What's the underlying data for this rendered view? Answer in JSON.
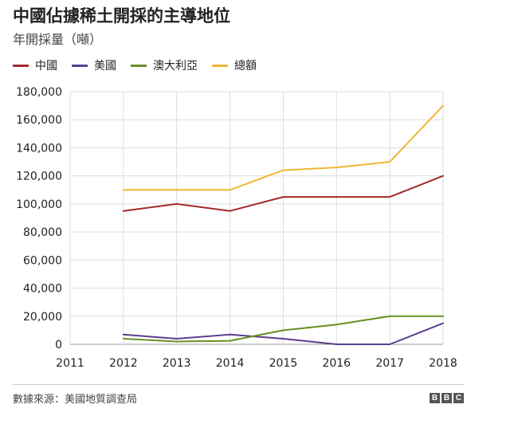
{
  "chart_data": {
    "type": "line",
    "title": "中國佔據稀土開採的主導地位",
    "subtitle": "年開採量（噸）",
    "x": [
      2011,
      2012,
      2013,
      2014,
      2015,
      2016,
      2017,
      2018
    ],
    "x_tick_labels": [
      "2011",
      "2012",
      "2013",
      "2014",
      "2015",
      "2016",
      "2017",
      "2018"
    ],
    "y_ticks": [
      0,
      20000,
      40000,
      60000,
      80000,
      100000,
      120000,
      140000,
      160000,
      180000
    ],
    "y_tick_labels": [
      "0",
      "20,000",
      "40,000",
      "60,000",
      "80,000",
      "100,000",
      "120,000",
      "140,000",
      "160,000",
      "180,000"
    ],
    "ylim": [
      0,
      180000
    ],
    "xlim": [
      2011,
      2018
    ],
    "grid": true,
    "legend_position": "top-left",
    "series": [
      {
        "name": "中國",
        "color": "#a52a2a",
        "x": [
          2012,
          2013,
          2014,
          2015,
          2016,
          2017,
          2018
        ],
        "values": [
          95000,
          100000,
          95000,
          105000,
          105000,
          105000,
          120000
        ]
      },
      {
        "name": "美國",
        "color": "#5b3f8c",
        "x": [
          2012,
          2013,
          2014,
          2015,
          2016,
          2017,
          2018
        ],
        "values": [
          7000,
          4000,
          7000,
          4000,
          0,
          0,
          15000
        ]
      },
      {
        "name": "澳大利亞",
        "color": "#6b8e23",
        "x": [
          2012,
          2013,
          2014,
          2015,
          2016,
          2017,
          2018
        ],
        "values": [
          4000,
          2000,
          2500,
          10000,
          14000,
          20000,
          20000
        ]
      },
      {
        "name": "總額",
        "color": "#f2b631",
        "x": [
          2012,
          2013,
          2014,
          2015,
          2016,
          2017,
          2018
        ],
        "values": [
          110000,
          110000,
          110000,
          124000,
          126000,
          130000,
          170000
        ]
      }
    ]
  },
  "footer": {
    "source": "數據來源：美國地質調查局",
    "logo_letters": [
      "B",
      "B",
      "C"
    ]
  }
}
